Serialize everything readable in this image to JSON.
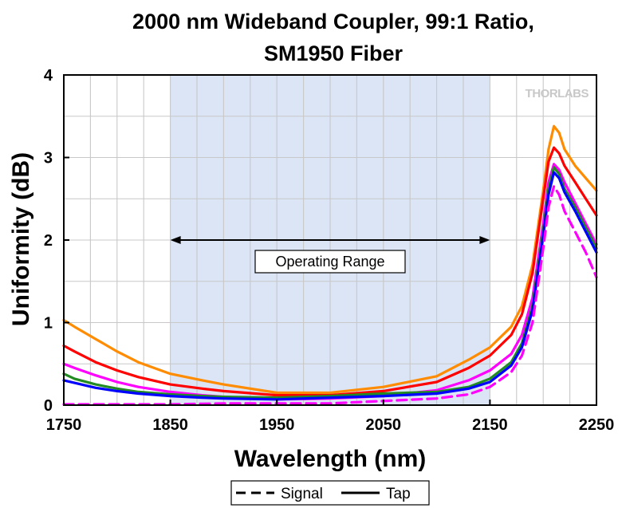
{
  "chart_data": {
    "type": "line",
    "title_lines": [
      "2000 nm Wideband Coupler, 99:1 Ratio,",
      "SM1950 Fiber"
    ],
    "xlabel": "Wavelength (nm)",
    "ylabel": "Uniformity (dB)",
    "xlim": [
      1750,
      2250
    ],
    "ylim": [
      0,
      4
    ],
    "xticks": [
      1750,
      1850,
      1950,
      2050,
      2150,
      2250
    ],
    "yticks": [
      0,
      1,
      2,
      3,
      4
    ],
    "grid": true,
    "shaded_region": [
      1850,
      2150
    ],
    "annotation": {
      "text": "Operating Range",
      "x_range": [
        1850,
        2150
      ],
      "y": 2.0
    },
    "logo": "THORLABS",
    "legend": {
      "position": "bottom",
      "entries": [
        {
          "label": "Signal",
          "style": "dashed"
        },
        {
          "label": "Tap",
          "style": "solid"
        }
      ]
    },
    "series": [
      {
        "color": "#ff8c00",
        "style": "solid",
        "x": [
          1750,
          1760,
          1780,
          1800,
          1820,
          1850,
          1880,
          1900,
          1950,
          2000,
          2050,
          2100,
          2130,
          2150,
          2170,
          2180,
          2190,
          2200,
          2205,
          2210,
          2215,
          2220,
          2230,
          2240,
          2250
        ],
        "y": [
          1.03,
          0.95,
          0.8,
          0.65,
          0.52,
          0.38,
          0.3,
          0.25,
          0.15,
          0.15,
          0.22,
          0.35,
          0.55,
          0.7,
          0.95,
          1.2,
          1.7,
          2.6,
          3.1,
          3.38,
          3.3,
          3.1,
          2.9,
          2.75,
          2.6
        ]
      },
      {
        "color": "#ff0000",
        "style": "solid",
        "x": [
          1750,
          1760,
          1780,
          1800,
          1820,
          1850,
          1880,
          1900,
          1950,
          2000,
          2050,
          2100,
          2130,
          2150,
          2170,
          2180,
          2190,
          2200,
          2205,
          2210,
          2215,
          2220,
          2230,
          2240,
          2250
        ],
        "y": [
          0.72,
          0.65,
          0.52,
          0.42,
          0.34,
          0.25,
          0.2,
          0.17,
          0.12,
          0.12,
          0.17,
          0.28,
          0.45,
          0.6,
          0.85,
          1.1,
          1.6,
          2.5,
          2.95,
          3.12,
          3.05,
          2.9,
          2.7,
          2.5,
          2.3
        ]
      },
      {
        "color": "#ff00ff",
        "style": "solid",
        "x": [
          1750,
          1760,
          1780,
          1800,
          1820,
          1850,
          1880,
          1900,
          1950,
          2000,
          2050,
          2100,
          2130,
          2150,
          2170,
          2180,
          2190,
          2200,
          2205,
          2210,
          2215,
          2220,
          2230,
          2240,
          2250
        ],
        "y": [
          0.5,
          0.45,
          0.36,
          0.28,
          0.22,
          0.16,
          0.12,
          0.1,
          0.07,
          0.08,
          0.11,
          0.18,
          0.3,
          0.42,
          0.62,
          0.85,
          1.3,
          2.2,
          2.7,
          2.92,
          2.85,
          2.7,
          2.45,
          2.2,
          1.95
        ]
      },
      {
        "color": "#228b22",
        "style": "solid",
        "x": [
          1750,
          1760,
          1780,
          1800,
          1820,
          1850,
          1880,
          1900,
          1950,
          2000,
          2050,
          2100,
          2130,
          2150,
          2170,
          2180,
          2190,
          2200,
          2205,
          2210,
          2215,
          2220,
          2230,
          2240,
          2250
        ],
        "y": [
          0.38,
          0.32,
          0.25,
          0.2,
          0.16,
          0.13,
          0.11,
          0.1,
          0.09,
          0.11,
          0.14,
          0.16,
          0.22,
          0.32,
          0.52,
          0.75,
          1.2,
          2.1,
          2.62,
          2.88,
          2.8,
          2.62,
          2.4,
          2.15,
          1.9
        ]
      },
      {
        "color": "#0000ff",
        "style": "solid",
        "x": [
          1750,
          1760,
          1780,
          1800,
          1820,
          1850,
          1880,
          1900,
          1950,
          2000,
          2050,
          2100,
          2130,
          2150,
          2170,
          2180,
          2190,
          2200,
          2205,
          2210,
          2215,
          2220,
          2230,
          2240,
          2250
        ],
        "y": [
          0.3,
          0.27,
          0.21,
          0.17,
          0.14,
          0.11,
          0.09,
          0.08,
          0.07,
          0.09,
          0.11,
          0.14,
          0.2,
          0.28,
          0.48,
          0.7,
          1.15,
          2.05,
          2.55,
          2.82,
          2.75,
          2.58,
          2.35,
          2.1,
          1.85
        ]
      },
      {
        "color": "#ff00ff",
        "style": "dashed",
        "x": [
          1750,
          1760,
          1780,
          1800,
          1850,
          1900,
          1950,
          2000,
          2050,
          2100,
          2130,
          2150,
          2170,
          2180,
          2190,
          2200,
          2205,
          2210,
          2215,
          2220,
          2230,
          2240,
          2250
        ],
        "y": [
          0.01,
          0.01,
          0.01,
          0.01,
          0.01,
          0.02,
          0.02,
          0.02,
          0.05,
          0.08,
          0.13,
          0.22,
          0.4,
          0.6,
          1.0,
          1.9,
          2.4,
          2.65,
          2.55,
          2.35,
          2.1,
          1.85,
          1.55
        ]
      }
    ]
  }
}
